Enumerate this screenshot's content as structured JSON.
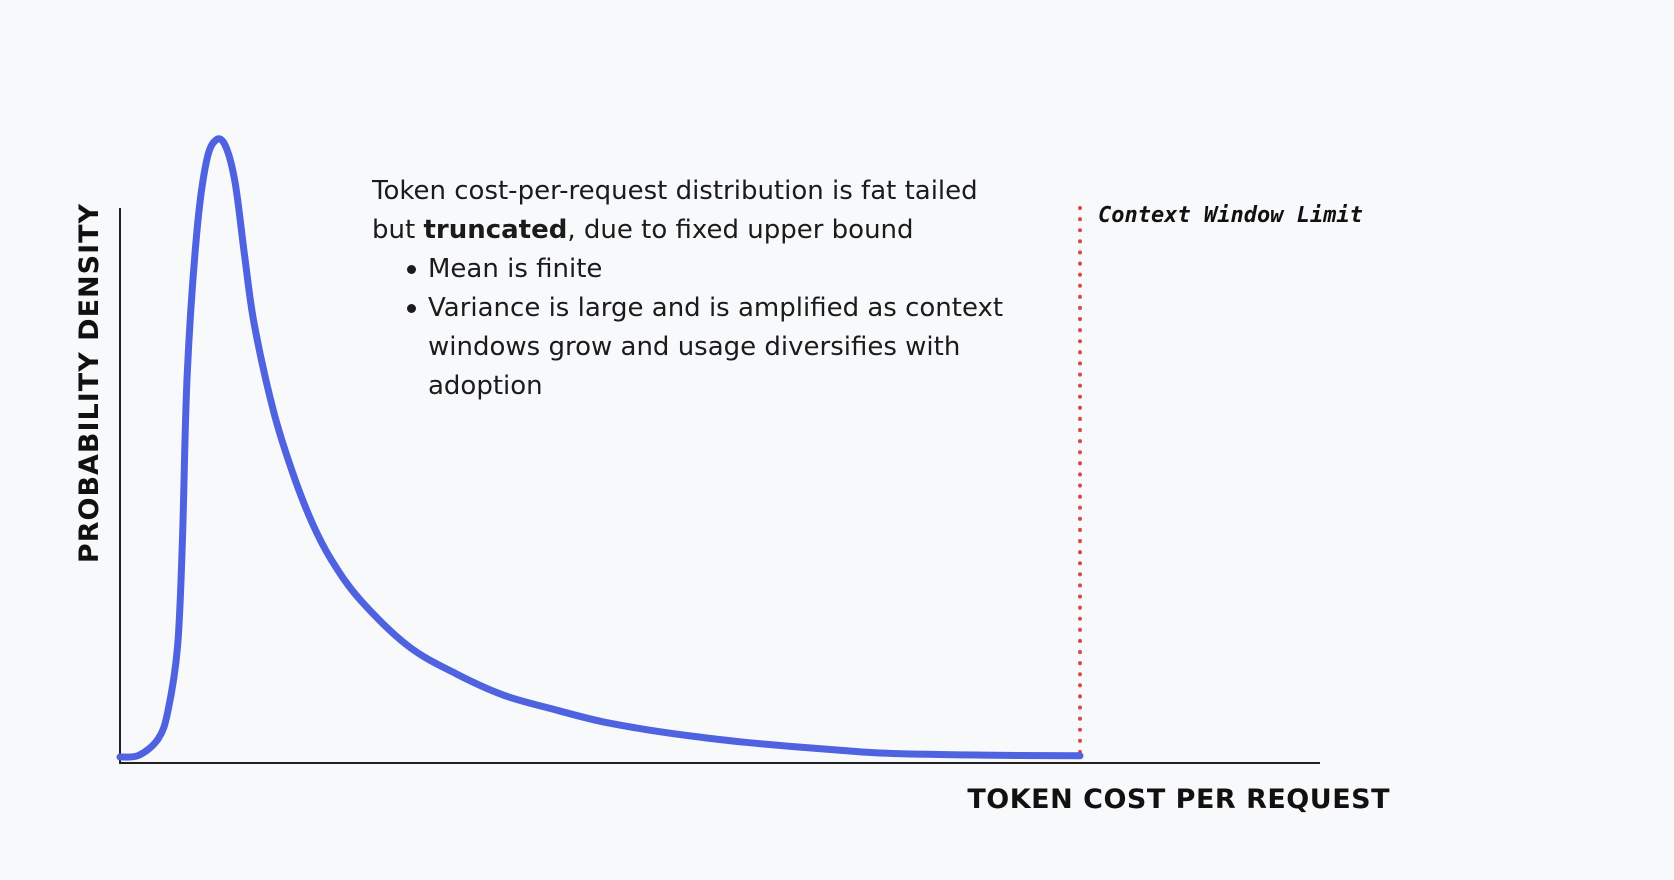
{
  "chart_data": {
    "type": "line",
    "title": "",
    "xlabel": "TOKEN COST PER REQUEST",
    "ylabel": "PROBABILITY DENSITY",
    "x_ticks": [],
    "y_ticks": [],
    "grid": false,
    "series": [
      {
        "color": "#4f63e0",
        "shape": "right-skewed (fat-tailed) probability density curve, truncated at the context window limit",
        "values": [
          [
            0.0,
            0.0
          ],
          [
            0.02,
            0.003
          ],
          [
            0.04,
            0.03
          ],
          [
            0.05,
            0.075
          ],
          [
            0.06,
            0.18
          ],
          [
            0.065,
            0.35
          ],
          [
            0.07,
            0.62
          ],
          [
            0.08,
            0.85
          ],
          [
            0.09,
            0.965
          ],
          [
            0.1,
            1.0
          ],
          [
            0.11,
            0.99
          ],
          [
            0.12,
            0.93
          ],
          [
            0.13,
            0.81
          ],
          [
            0.14,
            0.7
          ],
          [
            0.16,
            0.56
          ],
          [
            0.18,
            0.46
          ],
          [
            0.2,
            0.38
          ],
          [
            0.22,
            0.32
          ],
          [
            0.25,
            0.255
          ],
          [
            0.3,
            0.18
          ],
          [
            0.35,
            0.135
          ],
          [
            0.4,
            0.1
          ],
          [
            0.45,
            0.078
          ],
          [
            0.5,
            0.058
          ],
          [
            0.55,
            0.044
          ],
          [
            0.6,
            0.033
          ],
          [
            0.65,
            0.024
          ],
          [
            0.7,
            0.017
          ],
          [
            0.75,
            0.011
          ],
          [
            0.8,
            0.006
          ],
          [
            0.9,
            0.003
          ],
          [
            1.0,
            0.002
          ]
        ]
      }
    ],
    "annotations": [
      {
        "type": "vertical-line",
        "style": "dotted",
        "color": "#d94b4b",
        "x": 1.0,
        "label": "Context Window Limit"
      }
    ],
    "text_note": {
      "line1": "Token cost-per-request distribution is fat tailed",
      "line2_before": "but ",
      "line2_bold": "truncated",
      "line2_after": ", due to fixed upper bound",
      "bullets": [
        "Mean is finite",
        "Variance is large and is amplified as context windows grow and usage diversifies with adoption"
      ]
    }
  }
}
